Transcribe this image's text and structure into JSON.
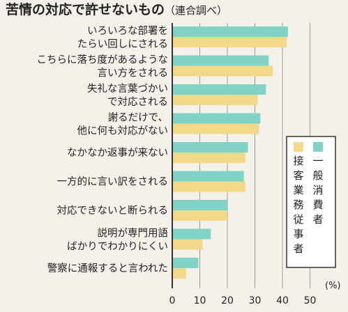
{
  "title": "苦情の対応で許せないもの",
  "subtitle": "（連合調べ）",
  "unit": "(%)",
  "colors": {
    "consumer": "#7fd4c6",
    "worker": "#f4d88a",
    "gridline": "#9a9a9a",
    "axis": "#333333"
  },
  "chart_data": {
    "type": "bar",
    "orientation": "horizontal",
    "title": "苦情の対応で許せないもの",
    "subtitle": "（連合調べ）",
    "unit": "(%)",
    "xlim": [
      0,
      50
    ],
    "xticks": [
      0,
      10,
      20,
      30,
      40,
      50
    ],
    "grid": true,
    "legend_position": "right",
    "categories": [
      [
        "いろいろな部署を",
        "たらい回しにされる"
      ],
      [
        "こちらに落ち度があるような",
        "言い方をされる"
      ],
      [
        "失礼な言葉づかい",
        "で対応される"
      ],
      [
        "謝るだけで、",
        "他に何も対応がない"
      ],
      [
        "なかなか返事が来ない"
      ],
      [
        "一方的に言い訳をされる"
      ],
      [
        "対応できないと断られる"
      ],
      [
        "説明が専門用語",
        "ばかりでわかりにくい"
      ],
      [
        "警察に通報すると言われた"
      ]
    ],
    "series": [
      {
        "name": "一般消費者",
        "values": [
          42,
          35,
          34,
          32,
          27.5,
          26,
          20,
          14,
          9.5
        ]
      },
      {
        "name": "接客業務従事者",
        "values": [
          41.5,
          36.5,
          31,
          31.5,
          26.5,
          26.5,
          20,
          11,
          5
        ]
      }
    ]
  }
}
